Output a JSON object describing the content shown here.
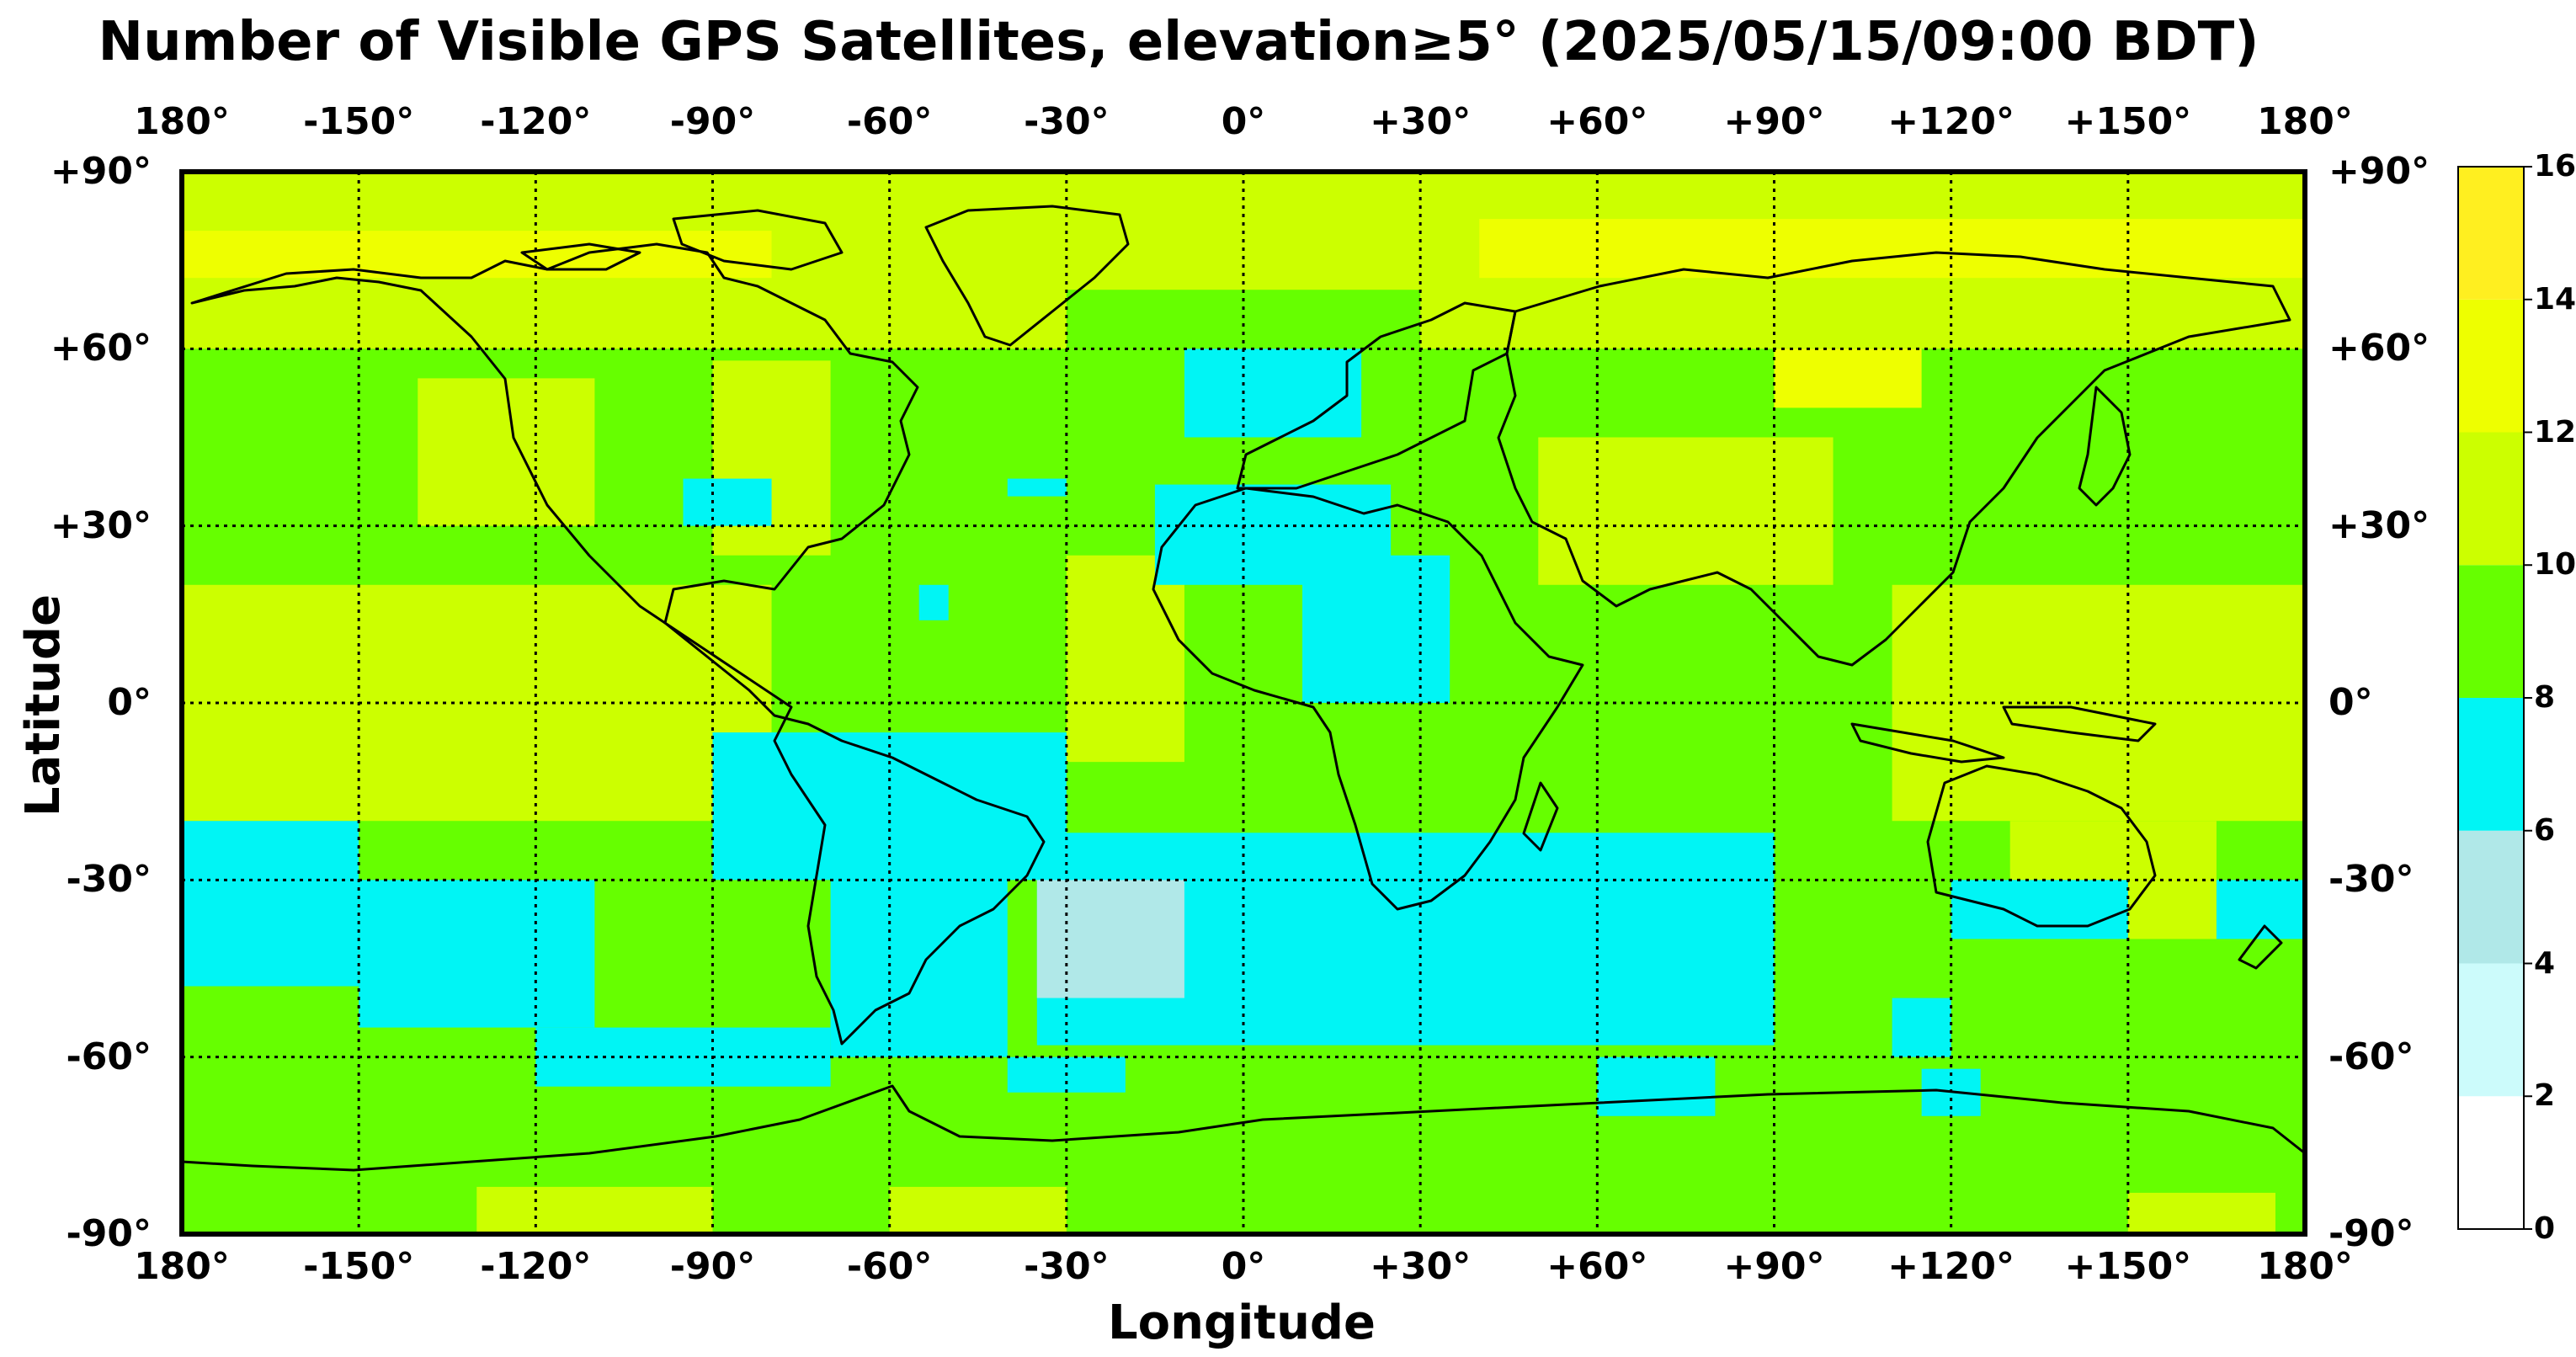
{
  "title": "Number of Visible GPS Satellites, elevation≥5° (2025/05/15/09:00 BDT)",
  "xlabel": "Longitude",
  "ylabel": "Latitude",
  "lon_ticks": [
    "180°",
    "-150°",
    "-120°",
    "-90°",
    "-60°",
    "-30°",
    "0°",
    "+30°",
    "+60°",
    "+90°",
    "+120°",
    "+150°",
    "180°"
  ],
  "lat_ticks": [
    "+90°",
    "+60°",
    "+30°",
    "0°",
    "-30°",
    "-60°",
    "-90°"
  ],
  "colorbar": {
    "ticks": [
      "16",
      "14",
      "12",
      "10",
      "8",
      "6",
      "4",
      "2",
      "0"
    ],
    "levels": [
      {
        "min": 0,
        "max": 2,
        "color": "#ffffff"
      },
      {
        "min": 2,
        "max": 4,
        "color": "#ccfbfb"
      },
      {
        "min": 4,
        "max": 6,
        "color": "#b0e8e8"
      },
      {
        "min": 6,
        "max": 8,
        "color": "#00f5f5"
      },
      {
        "min": 8,
        "max": 10,
        "color": "#66ff00"
      },
      {
        "min": 10,
        "max": 12,
        "color": "#ccff00"
      },
      {
        "min": 12,
        "max": 14,
        "color": "#eeff00"
      },
      {
        "min": 14,
        "max": 16,
        "color": "#ffef20"
      }
    ]
  },
  "chart_data": {
    "type": "heatmap",
    "title": "Number of Visible GPS Satellites, elevation≥5° (2025/05/15/09:00 BDT)",
    "xlabel": "Longitude",
    "ylabel": "Latitude",
    "xlim": [
      -180,
      180
    ],
    "ylim": [
      -90,
      90
    ],
    "grid": true,
    "colorbar_range": [
      0,
      16
    ],
    "base_value": 9,
    "regions": [
      {
        "value": 11,
        "lon": [
          -180,
          180
        ],
        "lat": [
          60,
          90
        ]
      },
      {
        "value": 13,
        "lon": [
          -180,
          -80
        ],
        "lat": [
          72,
          80
        ]
      },
      {
        "value": 13,
        "lon": [
          40,
          180
        ],
        "lat": [
          72,
          82
        ]
      },
      {
        "value": 12,
        "lon": [
          90,
          115
        ],
        "lat": [
          50,
          60
        ]
      },
      {
        "value": 9,
        "lon": [
          -30,
          30
        ],
        "lat": [
          60,
          70
        ]
      },
      {
        "value": 11,
        "lon": [
          -180,
          -150
        ],
        "lat": [
          -28,
          20
        ]
      },
      {
        "value": 11,
        "lon": [
          -150,
          -80
        ],
        "lat": [
          -20,
          20
        ]
      },
      {
        "value": 11,
        "lon": [
          -90,
          -70
        ],
        "lat": [
          25,
          58
        ]
      },
      {
        "value": 11,
        "lon": [
          -140,
          -110
        ],
        "lat": [
          30,
          55
        ]
      },
      {
        "value": 11,
        "lon": [
          -30,
          -10
        ],
        "lat": [
          -10,
          25
        ]
      },
      {
        "value": 11,
        "lon": [
          50,
          100
        ],
        "lat": [
          20,
          45
        ]
      },
      {
        "value": 11,
        "lon": [
          110,
          180
        ],
        "lat": [
          -20,
          20
        ]
      },
      {
        "value": 11,
        "lon": [
          130,
          165
        ],
        "lat": [
          -40,
          -20
        ]
      },
      {
        "value": 7,
        "lon": [
          -180,
          -150
        ],
        "lat": [
          -48,
          -20
        ]
      },
      {
        "value": 7,
        "lon": [
          -150,
          -110
        ],
        "lat": [
          -55,
          -30
        ]
      },
      {
        "value": 7,
        "lon": [
          -120,
          -70
        ],
        "lat": [
          -65,
          -55
        ]
      },
      {
        "value": 7,
        "lon": [
          -90,
          -30
        ],
        "lat": [
          -30,
          -5
        ]
      },
      {
        "value": 7,
        "lon": [
          -70,
          -40
        ],
        "lat": [
          -60,
          -25
        ]
      },
      {
        "value": 7,
        "lon": [
          -35,
          90
        ],
        "lat": [
          -58,
          -22
        ]
      },
      {
        "value": 7,
        "lon": [
          10,
          35
        ],
        "lat": [
          0,
          25
        ]
      },
      {
        "value": 7,
        "lon": [
          -15,
          25
        ],
        "lat": [
          20,
          37
        ]
      },
      {
        "value": 7,
        "lon": [
          -10,
          20
        ],
        "lat": [
          45,
          60
        ]
      },
      {
        "value": 7,
        "lon": [
          -95,
          -80
        ],
        "lat": [
          30,
          38
        ]
      },
      {
        "value": 7,
        "lon": [
          -55,
          -50
        ],
        "lat": [
          14,
          20
        ]
      },
      {
        "value": 7,
        "lon": [
          -40,
          -30
        ],
        "lat": [
          35,
          38
        ]
      },
      {
        "value": 7,
        "lon": [
          110,
          120
        ],
        "lat": [
          -60,
          -50
        ]
      },
      {
        "value": 7,
        "lon": [
          120,
          150
        ],
        "lat": [
          -40,
          -30
        ]
      },
      {
        "value": 7,
        "lon": [
          165,
          180
        ],
        "lat": [
          -40,
          -30
        ]
      },
      {
        "value": 7,
        "lon": [
          -40,
          -20
        ],
        "lat": [
          -66,
          -60
        ]
      },
      {
        "value": 7,
        "lon": [
          60,
          80
        ],
        "lat": [
          -70,
          -60
        ]
      },
      {
        "value": 7,
        "lon": [
          115,
          125
        ],
        "lat": [
          -70,
          -62
        ]
      },
      {
        "value": 5,
        "lon": [
          -35,
          -10
        ],
        "lat": [
          -50,
          -30
        ]
      },
      {
        "value": 11,
        "lon": [
          -130,
          -90
        ],
        "lat": [
          -90,
          -82
        ]
      },
      {
        "value": 11,
        "lon": [
          -60,
          -30
        ],
        "lat": [
          -90,
          -82
        ]
      },
      {
        "value": 11,
        "lon": [
          150,
          175
        ],
        "lat": [
          -90,
          -83
        ]
      }
    ]
  }
}
